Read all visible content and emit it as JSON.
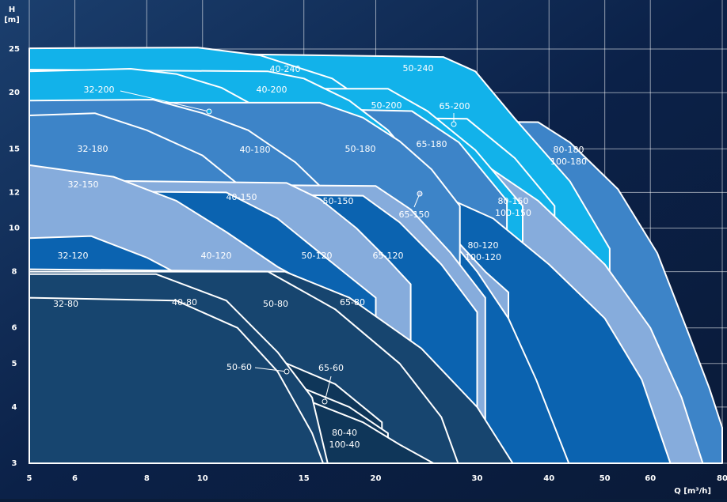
{
  "chart_data": {
    "type": "pump-map",
    "x_label": "Q [m³/h]",
    "y_label": "H",
    "y_unit": "[m]",
    "log_x": true,
    "log_y": true,
    "grid": true,
    "xlim": [
      5,
      80
    ],
    "ylim": [
      3,
      30
    ],
    "xticks": [
      5,
      6,
      8,
      10,
      15,
      20,
      30,
      40,
      50,
      60,
      80
    ],
    "yticks": [
      3,
      4,
      5,
      6,
      8,
      10,
      12,
      15,
      20,
      25
    ],
    "regions": [
      {
        "labels": [
          "80-180",
          "100-180"
        ],
        "color": "#3d84c8",
        "q": [
          5,
          38.3,
          43.5,
          52.7,
          61.7,
          70,
          76,
          80
        ],
        "h": [
          17.5,
          17.2,
          15.5,
          12.2,
          8.8,
          5.8,
          4.4,
          3.6
        ]
      },
      {
        "labels": [
          "50-240"
        ],
        "color": "#12b2ea",
        "q": [
          5,
          26.2,
          29.8,
          34.9,
          43.5,
          51
        ],
        "h": [
          24.7,
          24,
          22.3,
          17.5,
          12.7,
          9
        ]
      },
      {
        "labels": [
          "65-200"
        ],
        "color": "#12b2ea",
        "q": [
          5,
          28.8,
          34.9,
          40.9
        ],
        "h": [
          17.9,
          17.5,
          14.3,
          11.2
        ]
      },
      {
        "labels": [
          "80-150",
          "100-150"
        ],
        "color": "#86acdc",
        "q": [
          5,
          23.1,
          29.8,
          38.3,
          50,
          60,
          68,
          74
        ],
        "h": [
          16.1,
          15.5,
          14.3,
          11.5,
          8.3,
          6,
          4.2,
          3
        ]
      },
      {
        "labels": [
          "40-240"
        ],
        "color": "#12b2ea",
        "q": [
          5,
          9.8,
          12.6,
          16.8,
          20.3,
          26.2,
          31.7
        ],
        "h": [
          25.1,
          25.2,
          24.2,
          21.5,
          18.2,
          13.7,
          9.5
        ]
      },
      {
        "labels": [
          "50-200"
        ],
        "color": "#12b2ea",
        "q": [
          5,
          21,
          24.6,
          29.8,
          36
        ],
        "h": [
          20.4,
          20.4,
          18.2,
          14.9,
          11.2
        ]
      },
      {
        "labels": [
          "65-180"
        ],
        "color": "#3d84c8",
        "q": [
          5,
          23.1,
          27.9,
          33.8
        ],
        "h": [
          19,
          18.2,
          15.5,
          11.5
        ]
      },
      {
        "labels": [
          "80-120",
          "100-120"
        ],
        "color": "#0b63b0",
        "q": [
          5,
          25,
          32,
          40,
          50,
          58,
          65
        ],
        "h": [
          12.3,
          12.1,
          10.5,
          8.3,
          6.3,
          4.6,
          3
        ]
      },
      {
        "labels": [
          "65-150"
        ],
        "color": "#86acdc",
        "q": [
          5,
          21.7,
          26,
          31,
          34
        ],
        "h": [
          12.5,
          12.2,
          10.2,
          8,
          7.2
        ]
      },
      {
        "labels": [
          "65-120"
        ],
        "color": "#0b63b0",
        "q": [
          5,
          21,
          26,
          30,
          34,
          38,
          43.3
        ],
        "h": [
          12,
          11.8,
          10,
          8,
          6.3,
          4.6,
          3
        ]
      },
      {
        "labels": [
          "40-200"
        ],
        "color": "#12b2ea",
        "q": [
          5,
          13,
          15,
          18,
          21,
          24,
          26
        ],
        "h": [
          22.5,
          22.3,
          21.5,
          19.2,
          16.5,
          13.5,
          11.5
        ]
      },
      {
        "labels": [
          "32-200"
        ],
        "color": "#12b2ea",
        "q": [
          5,
          7.5,
          9,
          10.8,
          13,
          15
        ],
        "h": [
          22.3,
          22.6,
          22,
          20.5,
          18,
          15.5
        ]
      },
      {
        "labels": [
          "50-180"
        ],
        "color": "#3d84c8",
        "q": [
          5,
          16,
          19,
          22,
          25,
          28
        ],
        "h": [
          19,
          19,
          17.6,
          15.6,
          13.5,
          11.2
        ]
      },
      {
        "labels": [
          "40-180"
        ],
        "color": "#3d84c8",
        "q": [
          5,
          8.2,
          10,
          12,
          14.5,
          17,
          19.5
        ],
        "h": [
          19.2,
          19.3,
          18,
          16.5,
          14,
          11.5,
          9.5
        ]
      },
      {
        "labels": [
          "32-180"
        ],
        "color": "#3d84c8",
        "q": [
          5,
          6.5,
          8,
          10,
          12,
          14,
          14.5
        ],
        "h": [
          17.8,
          18,
          16.5,
          14.5,
          12,
          9.5,
          8.5
        ]
      },
      {
        "labels": [
          "50-150"
        ],
        "color": "#86acdc",
        "q": [
          5,
          20,
          23,
          27,
          31
        ],
        "h": [
          12.6,
          12.4,
          11,
          8.8,
          7
        ]
      },
      {
        "labels": [
          "50-120"
        ],
        "color": "#0b63b0",
        "q": [
          5,
          19,
          22,
          26,
          30
        ],
        "h": [
          12,
          11.8,
          10.3,
          8.3,
          6.5
        ]
      },
      {
        "labels": [
          "40-150"
        ],
        "color": "#86acdc",
        "q": [
          5,
          14,
          16,
          18.5,
          21,
          23
        ],
        "h": [
          12.8,
          12.6,
          11.6,
          10,
          8.5,
          7.5
        ]
      },
      {
        "labels": [
          "40-120"
        ],
        "color": "#0b63b0",
        "q": [
          5,
          11,
          13.5,
          15.5,
          18,
          20
        ],
        "h": [
          12.1,
          12,
          10.5,
          9.1,
          7.8,
          7
        ]
      },
      {
        "labels": [
          "32-150"
        ],
        "color": "#86acdc",
        "q": [
          5,
          7,
          9,
          11,
          13.5,
          14.5
        ],
        "h": [
          13.8,
          13,
          11.5,
          9.8,
          8.2,
          7.8
        ]
      },
      {
        "labels": [
          "32-120"
        ],
        "color": "#0b63b0",
        "q": [
          5,
          6.4,
          8,
          10,
          12,
          14
        ],
        "h": [
          9.5,
          9.6,
          8.6,
          7.4,
          6.2,
          5
        ]
      },
      {
        "labels": [
          "65-80"
        ],
        "color": "#17456f",
        "q": [
          5,
          13.9,
          18,
          24,
          30,
          34.6
        ],
        "h": [
          8.1,
          8,
          7,
          5.4,
          4,
          3
        ]
      },
      {
        "labels": [
          "50-80"
        ],
        "color": "#17456f",
        "q": [
          5,
          13,
          17,
          22,
          26,
          27.8
        ],
        "h": [
          8,
          8,
          6.6,
          5,
          3.8,
          3
        ]
      },
      {
        "labels": [
          "50-60"
        ],
        "color": "#0f3659",
        "q": [
          5,
          14,
          17,
          20.5
        ],
        "h": [
          5.2,
          5,
          4.5,
          3.7
        ]
      },
      {
        "labels": [
          "65-60"
        ],
        "color": "#0f3659",
        "q": [
          5,
          15,
          18,
          21
        ],
        "h": [
          4.6,
          4.4,
          4,
          3.5
        ]
      },
      {
        "labels": [
          "80-40",
          "100-40"
        ],
        "color": "#0f3659",
        "q": [
          5,
          15.5,
          19,
          22,
          25.2
        ],
        "h": [
          4.3,
          4.1,
          3.7,
          3.3,
          3
        ]
      },
      {
        "labels": [
          "40-80"
        ],
        "color": "#17456f",
        "q": [
          5,
          8.3,
          11,
          13.5,
          15.5,
          16.5
        ],
        "h": [
          7.9,
          7.9,
          6.9,
          5.3,
          4.2,
          3
        ]
      },
      {
        "labels": [
          "32-80"
        ],
        "color": "#17456f",
        "q": [
          5,
          9,
          11.5,
          13.5,
          15.5,
          16.2
        ],
        "h": [
          7,
          6.9,
          6,
          4.8,
          3.5,
          3
        ]
      }
    ]
  }
}
